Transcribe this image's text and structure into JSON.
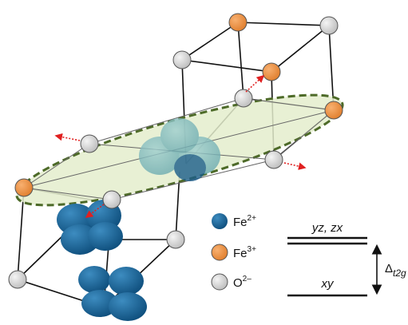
{
  "legend": [
    {
      "base": "Fe",
      "sup": "2+"
    },
    {
      "base": "Fe",
      "sup": "3+"
    },
    {
      "base": "O",
      "sup": "2–"
    }
  ],
  "levels": {
    "upper": "yz, zx",
    "lower": "xy",
    "gap": {
      "base": "Δ",
      "sub": "t2g"
    }
  }
}
